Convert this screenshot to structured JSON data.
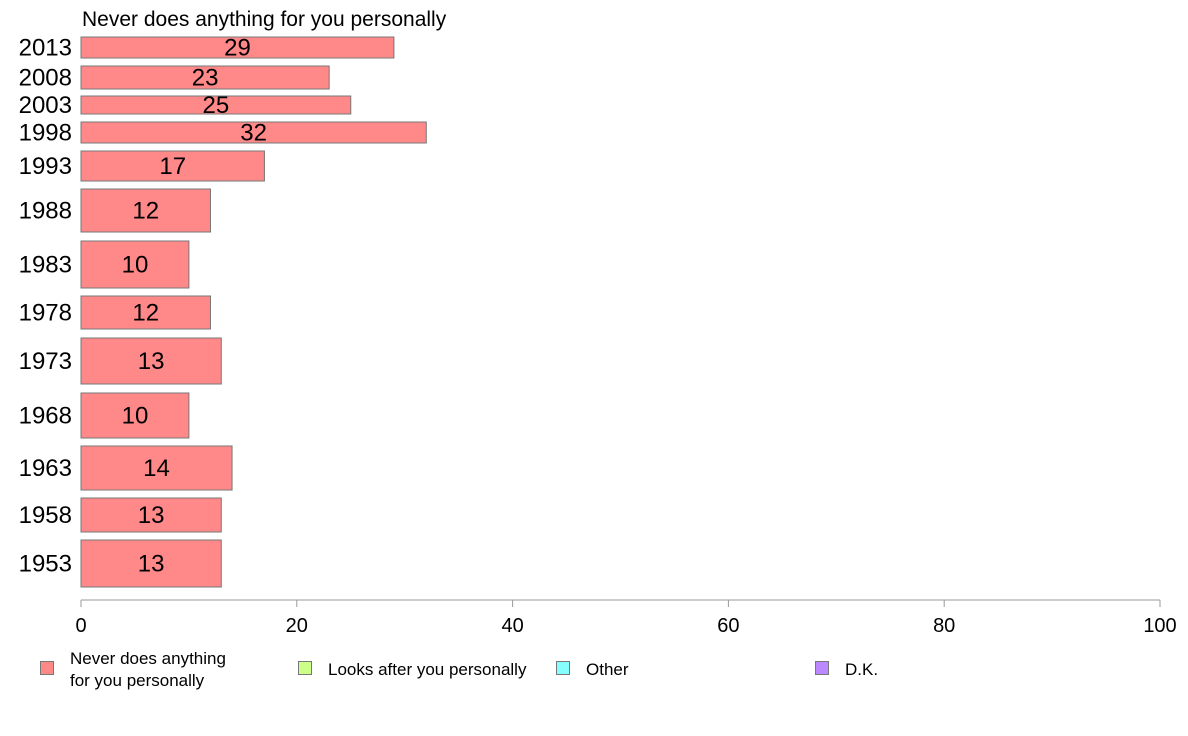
{
  "chart_data": {
    "type": "bar",
    "orientation": "horizontal",
    "title": "Never does anything for you personally",
    "categories": [
      "2013",
      "2008",
      "2003",
      "1998",
      "1993",
      "1988",
      "1983",
      "1978",
      "1973",
      "1968",
      "1963",
      "1958",
      "1953"
    ],
    "values": [
      29,
      23,
      25,
      32,
      17,
      12,
      10,
      12,
      13,
      10,
      14,
      13,
      13
    ],
    "bar_labels": [
      "29",
      "23",
      "25",
      "32",
      "17",
      "12",
      "10",
      "12",
      "13",
      "10",
      "14",
      "13",
      "13"
    ],
    "xlim": [
      0,
      100
    ],
    "xticks": [
      0,
      20,
      40,
      60,
      80,
      100
    ],
    "grid": false,
    "legend_position": "bottom",
    "legend": [
      {
        "label": "Never does anything\nfor you personally",
        "color": "#ff8888"
      },
      {
        "label": "Looks after you personally",
        "color": "#ccff88"
      },
      {
        "label": "Other",
        "color": "#88ffff"
      },
      {
        "label": "D.K.",
        "color": "#bb88ff"
      }
    ],
    "bar_color": "#ff8888",
    "bar_edge_color": "#777777"
  }
}
